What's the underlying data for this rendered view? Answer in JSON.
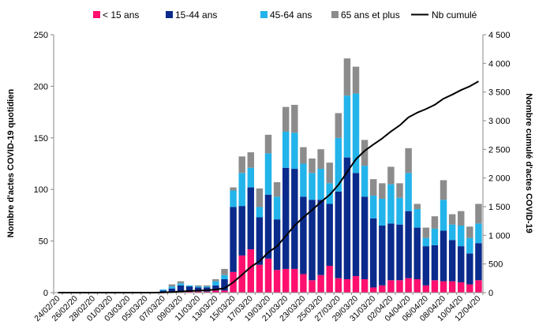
{
  "chart_data": {
    "type": "bar",
    "stacked": true,
    "ylabel": "Nombre d'actes COVID-19 quotidien",
    "y2label": "Nombre cumulé d'actes COVID-19",
    "ylim": [
      0,
      250
    ],
    "y2lim": [
      0,
      4500
    ],
    "yticks": [
      "0",
      "50",
      "100",
      "150",
      "200",
      "250"
    ],
    "y2ticks": [
      "0",
      "500",
      "1 000",
      "1 500",
      "2 000",
      "2 500",
      "3 000",
      "3 500",
      "4 000",
      "4 500"
    ],
    "grid": false,
    "legend_position": "top",
    "categories": [
      "24/02/20",
      "25/02/20",
      "26/02/20",
      "27/02/20",
      "28/02/20",
      "29/02/20",
      "01/03/20",
      "02/03/20",
      "03/03/20",
      "04/03/20",
      "05/03/20",
      "06/03/20",
      "07/03/20",
      "08/03/20",
      "09/03/20",
      "10/03/20",
      "11/03/20",
      "12/03/20",
      "13/03/20",
      "14/03/20",
      "15/03/20",
      "16/03/20",
      "17/03/20",
      "18/03/20",
      "19/03/20",
      "20/03/20",
      "21/03/20",
      "22/03/20",
      "23/03/20",
      "24/03/20",
      "25/03/20",
      "26/03/20",
      "27/03/20",
      "28/03/20",
      "29/03/20",
      "30/03/20",
      "31/03/20",
      "01/04/20",
      "02/04/20",
      "03/04/20",
      "04/04/20",
      "05/04/20",
      "06/04/20",
      "07/04/20",
      "08/04/20",
      "09/04/20",
      "10/04/20",
      "11/04/20",
      "12/04/20"
    ],
    "x_tick_labels": [
      "24/02/20",
      "26/02/20",
      "28/02/20",
      "01/03/20",
      "03/03/20",
      "05/03/20",
      "07/03/20",
      "09/03/20",
      "11/03/20",
      "13/03/20",
      "15/03/20",
      "17/03/20",
      "19/03/20",
      "21/03/20",
      "23/03/20",
      "25/03/20",
      "27/03/20",
      "29/03/20",
      "31/03/20",
      "02/04/20",
      "04/04/20",
      "06/04/20",
      "08/04/20",
      "10/04/20",
      "12/04/20"
    ],
    "series": [
      {
        "name": "< 15 ans",
        "type": "bar",
        "axis": "left",
        "color": "#ff0f6e",
        "values": [
          0,
          0,
          0,
          0,
          0,
          0,
          0,
          0,
          0,
          0,
          0,
          0,
          0,
          1,
          1,
          1,
          1,
          1,
          2,
          2,
          20,
          36,
          42,
          27,
          33,
          22,
          23,
          23,
          18,
          12,
          17,
          26,
          14,
          13,
          16,
          13,
          5,
          7,
          12,
          12,
          14,
          13,
          7,
          12,
          11,
          11,
          10,
          8,
          12
        ]
      },
      {
        "name": "15-44 ans",
        "type": "bar",
        "axis": "left",
        "color": "#0a2a8c",
        "values": [
          0,
          0,
          0,
          0,
          0,
          0,
          0,
          0,
          0,
          0,
          0,
          0,
          2,
          3,
          6,
          5,
          4,
          4,
          5,
          11,
          63,
          48,
          60,
          46,
          62,
          49,
          98,
          97,
          75,
          78,
          73,
          60,
          84,
          118,
          100,
          80,
          67,
          58,
          55,
          54,
          65,
          50,
          38,
          34,
          49,
          40,
          35,
          30,
          36
        ]
      },
      {
        "name": "45-64 ans",
        "type": "bar",
        "axis": "left",
        "color": "#22b4ea",
        "values": [
          0,
          0,
          0,
          0,
          0,
          0,
          0,
          0,
          0,
          0,
          0,
          0,
          1,
          2,
          2,
          1,
          1,
          1,
          4,
          4,
          16,
          32,
          19,
          10,
          40,
          22,
          35,
          35,
          32,
          26,
          30,
          20,
          52,
          60,
          77,
          30,
          22,
          26,
          38,
          26,
          37,
          18,
          8,
          16,
          30,
          15,
          20,
          15,
          19
        ]
      },
      {
        "name": "65 ans et plus",
        "type": "bar",
        "axis": "left",
        "color": "#8c8c8c",
        "values": [
          0,
          0,
          0,
          0,
          0,
          0,
          0,
          0,
          0,
          0,
          0,
          0,
          0,
          2,
          2,
          0,
          1,
          1,
          2,
          6,
          3,
          16,
          15,
          18,
          18,
          14,
          24,
          27,
          16,
          14,
          19,
          20,
          24,
          36,
          26,
          25,
          16,
          15,
          17,
          14,
          24,
          5,
          10,
          12,
          19,
          10,
          14,
          11,
          19
        ]
      },
      {
        "name": "Nb cumulé",
        "type": "line",
        "axis": "right",
        "color": "#000000",
        "values": [
          0,
          0,
          0,
          0,
          0,
          0,
          0,
          0,
          0,
          0,
          0,
          0,
          3,
          10,
          21,
          28,
          34,
          41,
          54,
          77,
          180,
          312,
          448,
          549,
          702,
          809,
          989,
          1171,
          1312,
          1442,
          1580,
          1706,
          1880,
          2107,
          2326,
          2474,
          2584,
          2690,
          2812,
          2918,
          3058,
          3140,
          3203,
          3277,
          3384,
          3455,
          3534,
          3600,
          3686
        ]
      }
    ]
  }
}
